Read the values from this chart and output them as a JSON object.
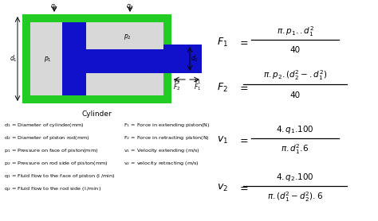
{
  "bg_color": "#ffffff",
  "green_color": "#22cc22",
  "blue_color": "#1111cc",
  "gray_color": "#d8d8d8",
  "text_color": "#000000",
  "legend_left": [
    "d$_1$ = Diameter of cylinder(mm)",
    "d$_2$ = Diameter of piston rod(mm)",
    "p$_1$ = Pressure on face of piston(mm)",
    "p$_2$ = Pressure on rod side of piston(mm)",
    "q$_1$ = Fluid flow to the face of piston (l /min)",
    "q$_2$ = Fluid flow to the rod side (l /min)"
  ],
  "legend_right": [
    "F$_1$ = Force in extending piston(N)",
    "F$_2$ = Force in retracting piston(N)",
    "v$_1$ = Velocity extending (m/s)",
    "v$_2$ = velocity retracting (m/s)"
  ]
}
